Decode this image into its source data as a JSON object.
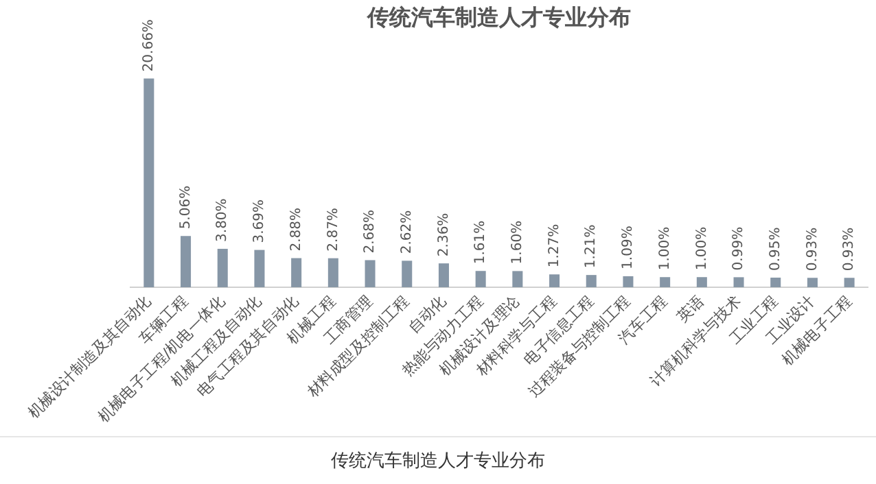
{
  "chart_data": {
    "type": "bar",
    "title": "传统汽车制造人才专业分布",
    "categories": [
      "机械设计制造及其自动化",
      "车辆工程",
      "机械电子工程/机电一体化",
      "机械工程及自动化",
      "电气工程及其自动化",
      "机械工程",
      "工商管理",
      "材料成型及控制工程",
      "自动化",
      "热能与动力工程",
      "机械设计及理论",
      "材料科学与工程",
      "电子信息工程",
      "过程装备与控制工程",
      "汽车工程",
      "英语",
      "计算机科学与技术",
      "工业工程",
      "工业设计",
      "机械电子工程"
    ],
    "values": [
      20.66,
      5.06,
      3.8,
      3.69,
      2.88,
      2.87,
      2.68,
      2.62,
      2.36,
      1.61,
      1.6,
      1.27,
      1.21,
      1.09,
      1.0,
      1.0,
      0.99,
      0.95,
      0.93,
      0.93
    ],
    "value_labels": [
      "20.66%",
      "5.06%",
      "3.80%",
      "3.69%",
      "2.88%",
      "2.87%",
      "2.68%",
      "2.62%",
      "2.36%",
      "1.61%",
      "1.60%",
      "1.27%",
      "1.21%",
      "1.09%",
      "1.00%",
      "1.00%",
      "0.99%",
      "0.95%",
      "0.93%",
      "0.93%"
    ],
    "color": "#8696a6",
    "annotations": [
      "传统汽车制造人才专业分布"
    ],
    "legend": false,
    "grid": false
  }
}
